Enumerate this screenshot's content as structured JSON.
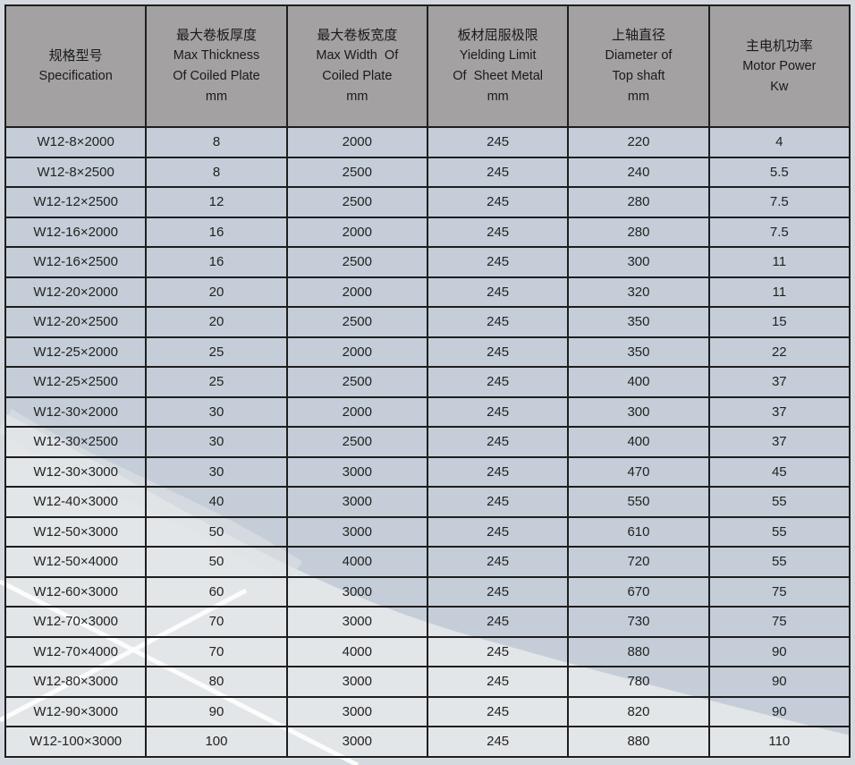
{
  "colors": {
    "header_bg": "#a3a1a1",
    "row_bg": "#c5ced8",
    "light_region": "#e4e7e9",
    "border": "#1e1e1e"
  },
  "headers": [
    {
      "cn": "规格型号",
      "en": [
        "Specification"
      ]
    },
    {
      "cn": "最大卷板厚度",
      "en": [
        "Max Thickness",
        "Of Coiled Plate",
        "mm"
      ]
    },
    {
      "cn": "最大卷板宽度",
      "en": [
        "Max Width  Of",
        "Coiled Plate",
        "mm"
      ]
    },
    {
      "cn": "板材屈服极限",
      "en": [
        "Yielding Limit",
        "Of  Sheet Metal",
        "mm"
      ]
    },
    {
      "cn": "上轴直径",
      "en": [
        "Diameter of",
        "Top shaft",
        "mm"
      ]
    },
    {
      "cn": "主电机功率",
      "en": [
        "Motor Power",
        "Kw"
      ]
    }
  ],
  "rows": [
    [
      "W12-8×2000",
      "8",
      "2000",
      "245",
      "220",
      "4"
    ],
    [
      "W12-8×2500",
      "8",
      "2500",
      "245",
      "240",
      "5.5"
    ],
    [
      "W12-12×2500",
      "12",
      "2500",
      "245",
      "280",
      "7.5"
    ],
    [
      "W12-16×2000",
      "16",
      "2000",
      "245",
      "280",
      "7.5"
    ],
    [
      "W12-16×2500",
      "16",
      "2500",
      "245",
      "300",
      "11"
    ],
    [
      "W12-20×2000",
      "20",
      "2000",
      "245",
      "320",
      "11"
    ],
    [
      "W12-20×2500",
      "20",
      "2500",
      "245",
      "350",
      "15"
    ],
    [
      "W12-25×2000",
      "25",
      "2000",
      "245",
      "350",
      "22"
    ],
    [
      "W12-25×2500",
      "25",
      "2500",
      "245",
      "400",
      "37"
    ],
    [
      "W12-30×2000",
      "30",
      "2000",
      "245",
      "300",
      "37"
    ],
    [
      "W12-30×2500",
      "30",
      "2500",
      "245",
      "400",
      "37"
    ],
    [
      "W12-30×3000",
      "30",
      "3000",
      "245",
      "470",
      "45"
    ],
    [
      "W12-40×3000",
      "40",
      "3000",
      "245",
      "550",
      "55"
    ],
    [
      "W12-50×3000",
      "50",
      "3000",
      "245",
      "610",
      "55"
    ],
    [
      "W12-50×4000",
      "50",
      "4000",
      "245",
      "720",
      "55"
    ],
    [
      "W12-60×3000",
      "60",
      "3000",
      "245",
      "670",
      "75"
    ],
    [
      "W12-70×3000",
      "70",
      "3000",
      "245",
      "730",
      "75"
    ],
    [
      "W12-70×4000",
      "70",
      "4000",
      "245",
      "880",
      "90"
    ],
    [
      "W12-80×3000",
      "80",
      "3000",
      "245",
      "780",
      "90"
    ],
    [
      "W12-90×3000",
      "90",
      "3000",
      "245",
      "820",
      "90"
    ],
    [
      "W12-100×3000",
      "100",
      "3000",
      "245",
      "880",
      "110"
    ]
  ]
}
